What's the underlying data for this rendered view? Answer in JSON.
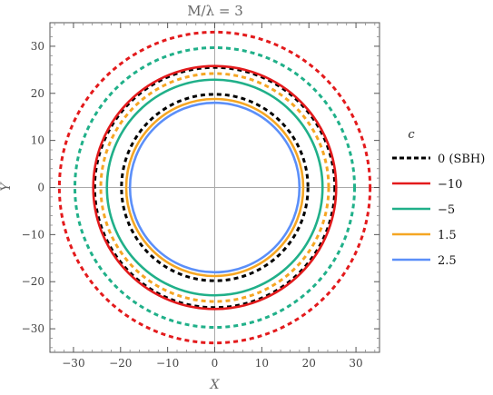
{
  "chart_data": {
    "type": "line",
    "title": "M/λ = 3",
    "xlabel": "X",
    "ylabel": "Y",
    "xlim": [
      -35,
      35
    ],
    "ylim": [
      -35,
      35
    ],
    "x_ticks": [
      -30,
      -20,
      -10,
      0,
      10,
      20,
      30
    ],
    "y_ticks": [
      -30,
      -20,
      -10,
      0,
      10,
      20,
      30
    ],
    "tick_labels_x": [
      "−30",
      "−20",
      "−10",
      "0",
      "10",
      "20",
      "30"
    ],
    "tick_labels_y": [
      "−30",
      "−20",
      "−10",
      "0",
      "10",
      "20",
      "30"
    ],
    "grid": false,
    "legend_position": "right",
    "legend_title": "c",
    "series": [
      {
        "name": "0 (SBH)",
        "color": "#000000",
        "dashed": true,
        "radius": 19.8
      },
      {
        "name": "0 (SBH)",
        "color": "#000000",
        "dashed": true,
        "radius": 25.5
      },
      {
        "name": "−10",
        "color": "#e31a1c",
        "dashed": false,
        "radius": 25.8
      },
      {
        "name": "−10",
        "color": "#e31a1c",
        "dashed": true,
        "radius": 33.0
      },
      {
        "name": "−5",
        "color": "#20b089",
        "dashed": false,
        "radius": 22.9
      },
      {
        "name": "−5",
        "color": "#20b089",
        "dashed": true,
        "radius": 29.7
      },
      {
        "name": "1.5",
        "color": "#f5a623",
        "dashed": false,
        "radius": 18.8
      },
      {
        "name": "1.5",
        "color": "#f5a623",
        "dashed": true,
        "radius": 24.2
      },
      {
        "name": "2.5",
        "color": "#5b8ff9",
        "dashed": false,
        "radius": 18.0
      }
    ],
    "legend": [
      {
        "label": "0 (SBH)",
        "color": "#000000",
        "dashed": true
      },
      {
        "label": "−10",
        "color": "#e31a1c",
        "dashed": false
      },
      {
        "label": "−5",
        "color": "#20b089",
        "dashed": false
      },
      {
        "label": "1.5",
        "color": "#f5a623",
        "dashed": false
      },
      {
        "label": "2.5",
        "color": "#5b8ff9",
        "dashed": false
      }
    ]
  }
}
